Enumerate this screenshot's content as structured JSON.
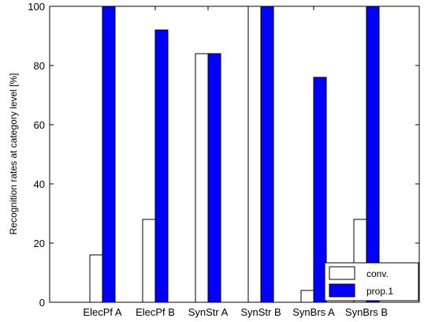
{
  "chart_data": {
    "type": "bar",
    "categories": [
      "ElecPf A",
      "ElecPf B",
      "SynStr A",
      "SynStr B",
      "SynBrs A",
      "SynBrs B"
    ],
    "series": [
      {
        "name": "conv.",
        "values": [
          16,
          28,
          84,
          100,
          4,
          28
        ],
        "color": "#ffffff"
      },
      {
        "name": "prop.1",
        "values": [
          100,
          92,
          84,
          100,
          76,
          100
        ],
        "color": "#0000ff"
      }
    ],
    "ylabel": "Recognition rates at category level [%]",
    "xlabel": "",
    "ylim": [
      0,
      100
    ],
    "yticks": [
      0,
      20,
      40,
      60,
      80,
      100
    ],
    "grid": false,
    "legend_position": "bottom-right"
  }
}
